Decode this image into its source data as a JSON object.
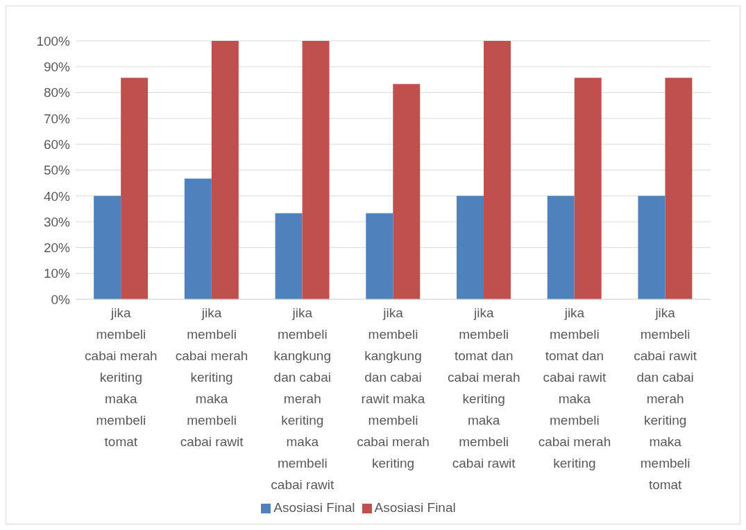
{
  "chart_data": {
    "type": "bar",
    "categories": [
      "jika membeli cabai merah keriting maka membeli tomat",
      "jika membeli cabai merah keriting maka membeli cabai rawit",
      "jika membeli kangkung dan cabai merah keriting maka membeli cabai rawit",
      "jika membeli kangkung dan cabai rawit maka membeli cabai merah keriting",
      "jika membeli tomat dan cabai merah keriting maka membeli cabai rawit",
      "jika membeli tomat dan cabai rawit maka membeli cabai merah keriting",
      "jika membeli cabai rawit dan cabai merah keriting maka membeli tomat"
    ],
    "series": [
      {
        "name": "Asosiasi Final",
        "color": "#4f81bd",
        "values": [
          40,
          46.7,
          33.3,
          33.3,
          40,
          40,
          40
        ]
      },
      {
        "name": "Asosiasi Final",
        "color": "#c0504d",
        "values": [
          85.7,
          100,
          100,
          83.3,
          100,
          85.7,
          85.7
        ]
      }
    ],
    "ylim": [
      0,
      100
    ],
    "yticks": [
      {
        "value": 0,
        "label": "0%"
      },
      {
        "value": 10,
        "label": "10%"
      },
      {
        "value": 20,
        "label": "20%"
      },
      {
        "value": 30,
        "label": "30%"
      },
      {
        "value": 40,
        "label": "40%"
      },
      {
        "value": 50,
        "label": "50%"
      },
      {
        "value": 60,
        "label": "60%"
      },
      {
        "value": 70,
        "label": "70%"
      },
      {
        "value": 80,
        "label": "80%"
      },
      {
        "value": 90,
        "label": "90%"
      },
      {
        "value": 100,
        "label": "100%"
      }
    ],
    "grid": "y",
    "legend": "bottom"
  }
}
